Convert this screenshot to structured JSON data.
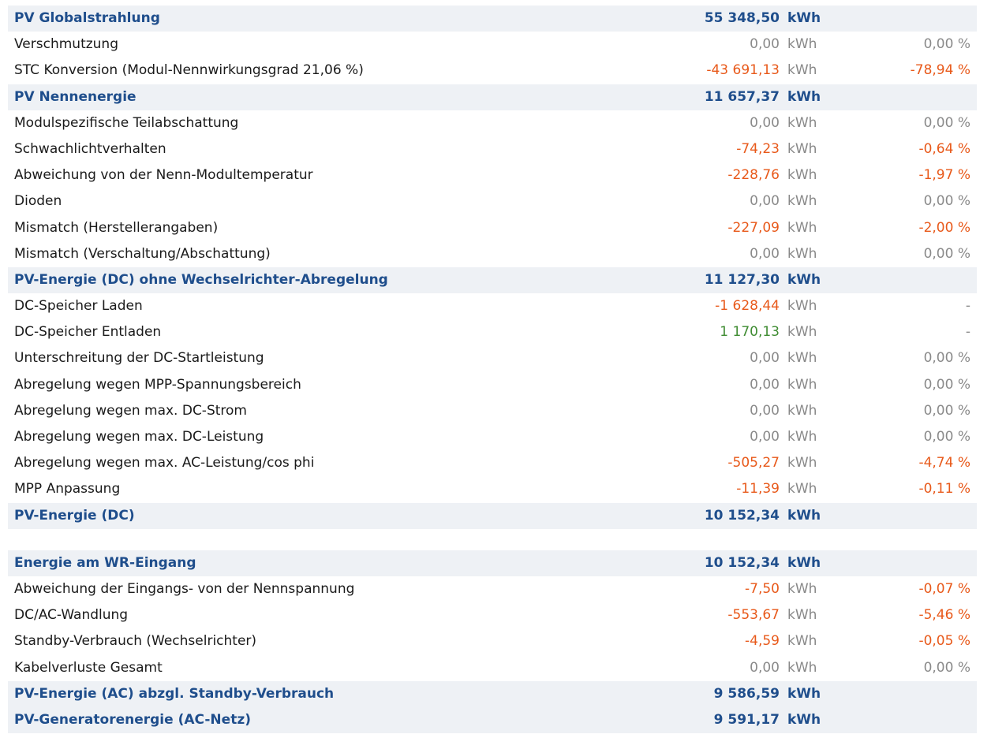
{
  "colors": {
    "header_text": "#1f4e8c",
    "header_bg": "#eef1f5",
    "negative": "#e8591a",
    "positive": "#3f8c32",
    "neutral": "#8a8a8a"
  },
  "rows": [
    {
      "type": "header",
      "label": "PV Globalstrahlung",
      "value": "55 348,50",
      "unit": "kWh",
      "pct": ""
    },
    {
      "type": "item",
      "label": "Verschmutzung",
      "value": "0,00",
      "unit": "kWh",
      "pct": "0,00 %",
      "tone": "neutral"
    },
    {
      "type": "item",
      "label": "STC Konversion (Modul-Nennwirkungsgrad 21,06 %)",
      "value": "-43 691,13",
      "unit": "kWh",
      "pct": "-78,94 %",
      "tone": "neg"
    },
    {
      "type": "header",
      "label": "PV Nennenergie",
      "value": "11 657,37",
      "unit": "kWh",
      "pct": ""
    },
    {
      "type": "item",
      "label": "Modulspezifische Teilabschattung",
      "value": "0,00",
      "unit": "kWh",
      "pct": "0,00 %",
      "tone": "neutral"
    },
    {
      "type": "item",
      "label": "Schwachlichtverhalten",
      "value": "-74,23",
      "unit": "kWh",
      "pct": "-0,64 %",
      "tone": "neg"
    },
    {
      "type": "item",
      "label": "Abweichung von der Nenn-Modultemperatur",
      "value": "-228,76",
      "unit": "kWh",
      "pct": "-1,97 %",
      "tone": "neg"
    },
    {
      "type": "item",
      "label": "Dioden",
      "value": "0,00",
      "unit": "kWh",
      "pct": "0,00 %",
      "tone": "neutral"
    },
    {
      "type": "item",
      "label": "Mismatch (Herstellerangaben)",
      "value": "-227,09",
      "unit": "kWh",
      "pct": "-2,00 %",
      "tone": "neg"
    },
    {
      "type": "item",
      "label": "Mismatch (Verschaltung/Abschattung)",
      "value": "0,00",
      "unit": "kWh",
      "pct": "0,00 %",
      "tone": "neutral"
    },
    {
      "type": "header",
      "label": "PV-Energie (DC) ohne Wechselrichter-Abregelung",
      "value": "11 127,30",
      "unit": "kWh",
      "pct": ""
    },
    {
      "type": "item",
      "label": "DC-Speicher Laden",
      "value": "-1 628,44",
      "unit": "kWh",
      "pct": "-",
      "tone": "neg",
      "pct_tone": "neutral"
    },
    {
      "type": "item",
      "label": "DC-Speicher Entladen",
      "value": "1 170,13",
      "unit": "kWh",
      "pct": "-",
      "tone": "pos",
      "pct_tone": "neutral"
    },
    {
      "type": "item",
      "label": "Unterschreitung der DC-Startleistung",
      "value": "0,00",
      "unit": "kWh",
      "pct": "0,00 %",
      "tone": "neutral"
    },
    {
      "type": "item",
      "label": "Abregelung wegen MPP-Spannungsbereich",
      "value": "0,00",
      "unit": "kWh",
      "pct": "0,00 %",
      "tone": "neutral"
    },
    {
      "type": "item",
      "label": "Abregelung wegen max. DC-Strom",
      "value": "0,00",
      "unit": "kWh",
      "pct": "0,00 %",
      "tone": "neutral"
    },
    {
      "type": "item",
      "label": "Abregelung wegen max. DC-Leistung",
      "value": "0,00",
      "unit": "kWh",
      "pct": "0,00 %",
      "tone": "neutral"
    },
    {
      "type": "item",
      "label": "Abregelung wegen max. AC-Leistung/cos phi",
      "value": "-505,27",
      "unit": "kWh",
      "pct": "-4,74 %",
      "tone": "neg"
    },
    {
      "type": "item",
      "label": "MPP Anpassung",
      "value": "-11,39",
      "unit": "kWh",
      "pct": "-0,11 %",
      "tone": "neg"
    },
    {
      "type": "header",
      "label": "PV-Energie (DC)",
      "value": "10 152,34",
      "unit": "kWh",
      "pct": ""
    },
    {
      "type": "gap"
    },
    {
      "type": "header",
      "label": "Energie am WR-Eingang",
      "value": "10 152,34",
      "unit": "kWh",
      "pct": ""
    },
    {
      "type": "item",
      "label": "Abweichung der Eingangs- von der Nennspannung",
      "value": "-7,50",
      "unit": "kWh",
      "pct": "-0,07 %",
      "tone": "neg"
    },
    {
      "type": "item",
      "label": "DC/AC-Wandlung",
      "value": "-553,67",
      "unit": "kWh",
      "pct": "-5,46 %",
      "tone": "neg"
    },
    {
      "type": "item",
      "label": "Standby-Verbrauch (Wechselrichter)",
      "value": "-4,59",
      "unit": "kWh",
      "pct": "-0,05 %",
      "tone": "neg"
    },
    {
      "type": "item",
      "label": "Kabelverluste Gesamt",
      "value": "0,00",
      "unit": "kWh",
      "pct": "0,00 %",
      "tone": "neutral"
    },
    {
      "type": "header",
      "label": "PV-Energie (AC) abzgl. Standby-Verbrauch",
      "value": "9 586,59",
      "unit": "kWh",
      "pct": ""
    },
    {
      "type": "header",
      "label": "PV-Generatorenergie (AC-Netz)",
      "value": "9 591,17",
      "unit": "kWh",
      "pct": ""
    }
  ]
}
